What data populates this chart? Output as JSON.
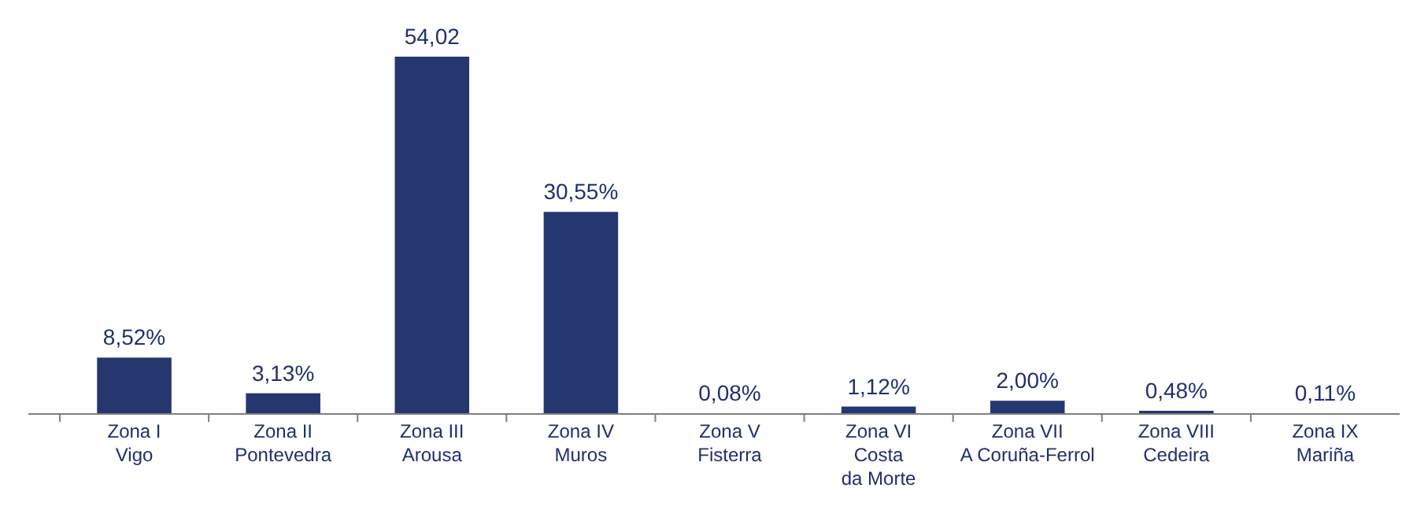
{
  "chart_data": {
    "type": "bar",
    "categories": [
      "Zona I\nVigo",
      "Zona II\nPontevedra",
      "Zona III\nArousa",
      "Zona IV\nMuros",
      "Zona V\nFisterra",
      "Zona VI\nCosta\nda Morte",
      "Zona VII\nA Coruña-Ferrol",
      "Zona VIII\nCedeira",
      "Zona IX\nMariña"
    ],
    "values": [
      8.52,
      3.13,
      54.02,
      30.55,
      0.08,
      1.12,
      2.0,
      0.48,
      0.11
    ],
    "value_labels": [
      "8,52%",
      "3,13%",
      "54,02",
      "30,55%",
      "0,08%",
      "1,12%",
      "2,00%",
      "0,48%",
      "0,11%"
    ],
    "color": "#26366f",
    "tick_labels": "x"
  }
}
